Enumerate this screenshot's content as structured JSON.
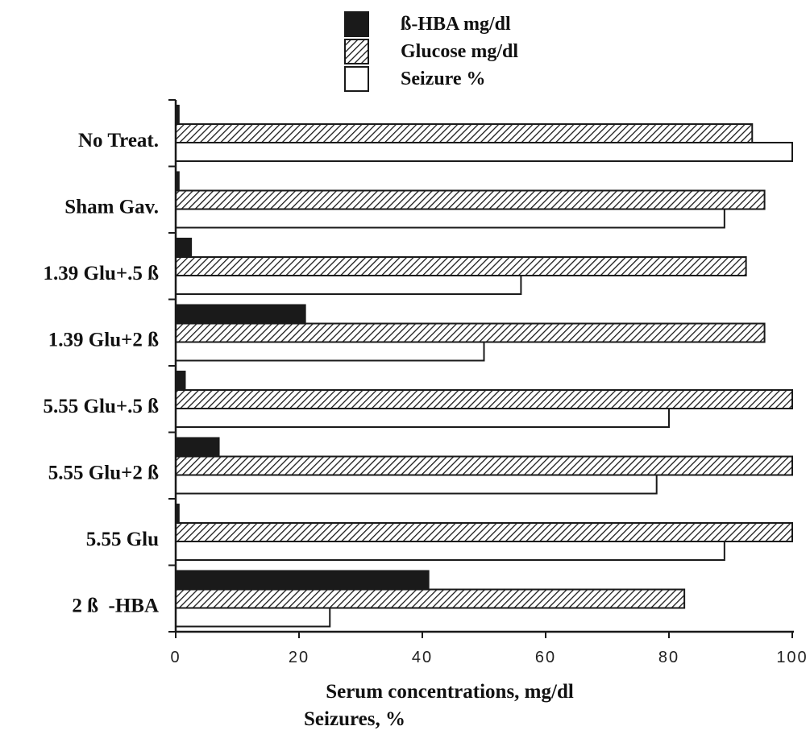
{
  "chart_data": {
    "type": "bar",
    "orientation": "horizontal",
    "categories": [
      "No Treat.",
      "Sham Gav.",
      "1.39 Glu+.5 ß",
      "1.39 Glu+2 ß",
      "5.55 Glu+.5 ß",
      "5.55 Glu+2 ß",
      "5.55 Glu",
      "2 ß  -HBA"
    ],
    "series": [
      {
        "name": "ß-HBA mg/dl",
        "values": [
          0.5,
          0.5,
          2.5,
          21,
          1.5,
          7,
          0.5,
          41
        ],
        "fill": "solid",
        "color": "#1a1a1a"
      },
      {
        "name": "Glucose mg/dl",
        "values": [
          93.5,
          95.5,
          92.5,
          95.5,
          100,
          100,
          100,
          82.5
        ],
        "fill": "hatched",
        "color": "#1a1a1a"
      },
      {
        "name": "Seizure  %",
        "values": [
          100,
          89,
          56,
          50,
          80,
          78,
          89,
          25
        ],
        "fill": "open",
        "color": "#ffffff"
      }
    ],
    "xlim": [
      0,
      100
    ],
    "x_ticks": [
      "0",
      "20",
      "40",
      "60",
      "80",
      "100"
    ],
    "xlabel_lines": [
      "Serum concentrations, mg/dl",
      "Seizures, %"
    ],
    "legend_position": "top-center",
    "grid": false
  }
}
